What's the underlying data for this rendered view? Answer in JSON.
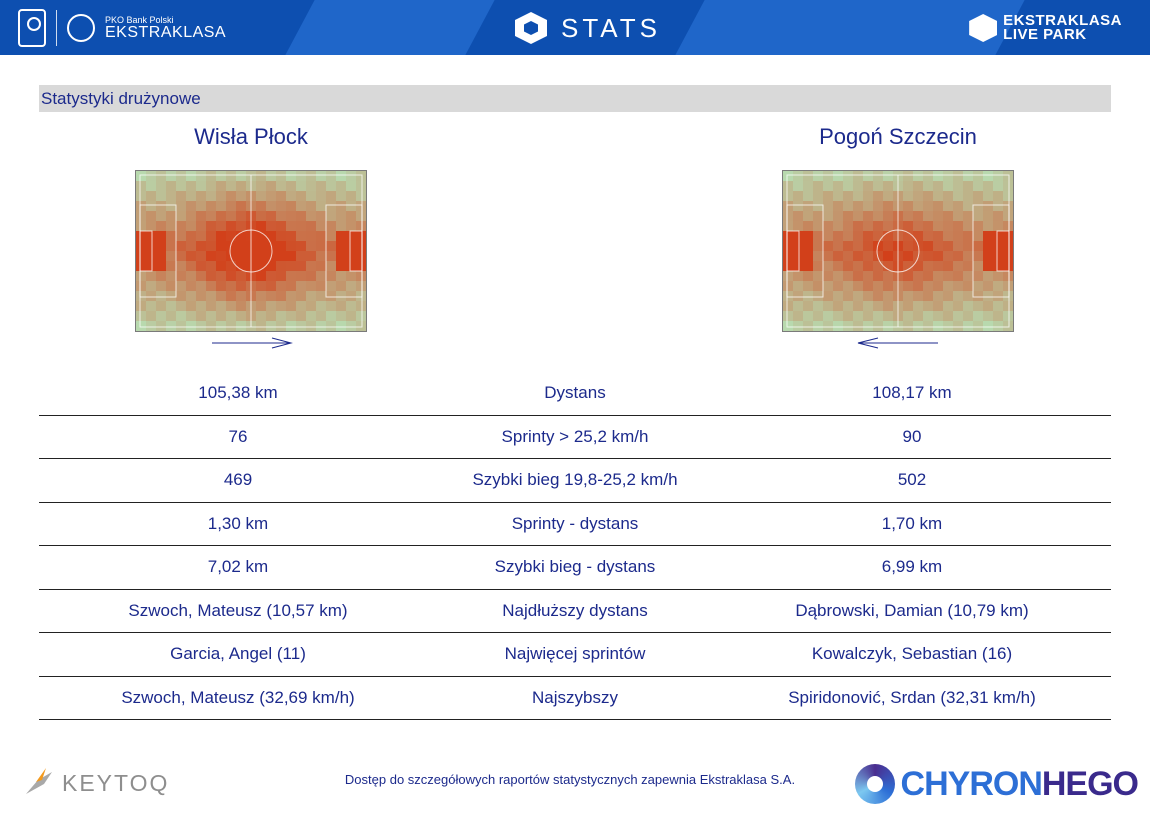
{
  "header": {
    "brand_small": "PKO Bank Polski",
    "brand_name": "EKSTRAKLASA",
    "stats_title": "STATS",
    "live_line1": "EKSTRAKLASA",
    "live_line2": "LIVE PARK",
    "pko_logo_text": "PKO",
    "colors": {
      "bar": "#0d4fb0",
      "stripe": "#1f66c9"
    }
  },
  "section": {
    "title": "Statystyki drużynowe"
  },
  "teams": {
    "home": {
      "name": "Wisła Płock",
      "direction": "right"
    },
    "away": {
      "name": "Pogoń Szczecin",
      "direction": "left"
    }
  },
  "stats": [
    {
      "home": "105,38 km",
      "label": "Dystans",
      "away": "108,17 km"
    },
    {
      "home": "76",
      "label": "Sprinty > 25,2 km/h",
      "away": "90"
    },
    {
      "home": "469",
      "label": "Szybki bieg 19,8-25,2 km/h",
      "away": "502"
    },
    {
      "home": "1,30 km",
      "label": "Sprinty - dystans",
      "away": "1,70 km"
    },
    {
      "home": "7,02 km",
      "label": "Szybki bieg - dystans",
      "away": "6,99 km"
    },
    {
      "home": "Szwoch, Mateusz (10,57 km)",
      "label": "Najdłuższy dystans",
      "away": "Dąbrowski, Damian (10,79 km)"
    },
    {
      "home": "Garcia, Angel (11)",
      "label": "Najwięcej sprintów",
      "away": "Kowalczyk, Sebastian (16)"
    },
    {
      "home": "Szwoch, Mateusz (32,69 km/h)",
      "label": "Najszybszy",
      "away": "Spiridonović, Srdan (32,31 km/h)"
    }
  ],
  "footer": {
    "keytoq": "KEYTOQ",
    "note": "Dostęp do szczegółowych raportów statystycznych zapewnia Ekstraklasa S.A.",
    "chyron_a": "CHYRON",
    "chyron_b": "HEGO"
  },
  "colors": {
    "text": "#1c2a8c",
    "heat_high": "#d2401a",
    "pitch": "#b8d9ae"
  }
}
